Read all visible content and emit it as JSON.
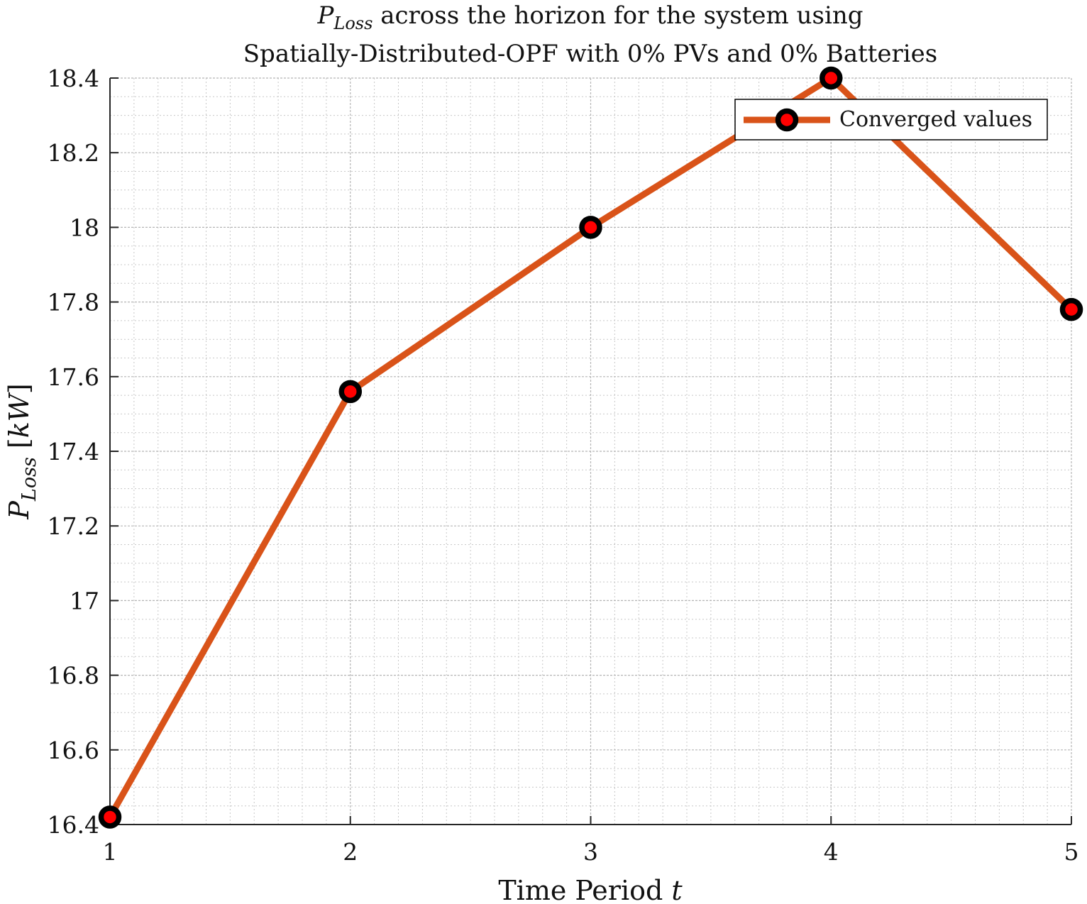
{
  "chart_data": {
    "type": "line",
    "title_lines": [
      {
        "sym": "P",
        "sub": "Loss",
        "rest": " across the horizon for the system using"
      },
      {
        "sym": "",
        "sub": "",
        "rest": "Spatially-Distributed-OPF with 0% PVs and 0% Batteries"
      }
    ],
    "xlabel": {
      "text": "Time Period ",
      "sym": "t"
    },
    "ylabel": {
      "sym": "P",
      "sub": "Loss",
      "unit_open": " [",
      "unit": "kW",
      "unit_close": "]"
    },
    "x": [
      1,
      2,
      3,
      4,
      5
    ],
    "series": [
      {
        "name": "Converged values",
        "values": [
          16.42,
          17.56,
          18.0,
          18.4,
          17.78
        ]
      }
    ],
    "xlim": [
      1,
      5
    ],
    "ylim": [
      16.4,
      18.4
    ],
    "xticks": [
      "1",
      "2",
      "3",
      "4",
      "5"
    ],
    "yticks": [
      "16.4",
      "16.6",
      "16.8",
      "17",
      "17.2",
      "17.4",
      "17.6",
      "17.8",
      "18",
      "18.2",
      "18.4"
    ],
    "grid": true,
    "minor_grid": true,
    "legend_position": "top-right",
    "colors": {
      "line": "#D95319",
      "marker_edge": "#000000",
      "marker_face": "#FF0000",
      "grid": "#c8c8c8"
    }
  }
}
